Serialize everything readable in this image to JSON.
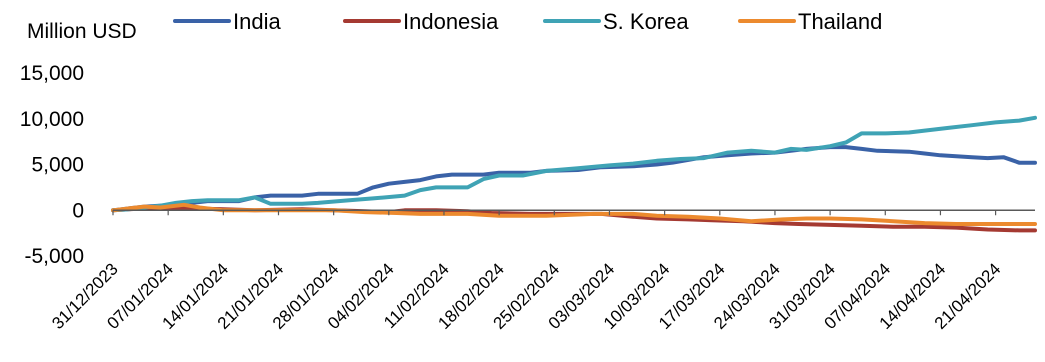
{
  "chart_data": {
    "type": "line",
    "ylabel": "Million USD",
    "ylim": [
      -5000,
      15000
    ],
    "ytick_values": [
      -5000,
      0,
      5000,
      10000,
      15000
    ],
    "ytick_labels": [
      "-5,000",
      "0",
      "5,000",
      "10,000",
      "15,000"
    ],
    "x_start": "2023-12-31",
    "x_end": "2024-04-26",
    "xtick_labels": [
      "31/12/2023",
      "07/01/2024",
      "14/01/2024",
      "21/01/2024",
      "28/01/2024",
      "04/02/2024",
      "11/02/2024",
      "18/02/2024",
      "25/02/2024",
      "03/03/2024",
      "10/03/2024",
      "17/03/2024",
      "24/03/2024",
      "31/03/2024",
      "07/04/2024",
      "14/04/2024",
      "21/04/2024"
    ],
    "xtick_dates": [
      "2023-12-31",
      "2024-01-07",
      "2024-01-14",
      "2024-01-21",
      "2024-01-28",
      "2024-02-04",
      "2024-02-11",
      "2024-02-18",
      "2024-02-25",
      "2024-03-03",
      "2024-03-10",
      "2024-03-17",
      "2024-03-24",
      "2024-03-31",
      "2024-04-07",
      "2024-04-14",
      "2024-04-21"
    ],
    "legend_position": "top",
    "grid": false,
    "series": [
      {
        "name": "India",
        "color": "#3A62A7",
        "points": [
          [
            "2023-12-31",
            0
          ],
          [
            "2024-01-02",
            200
          ],
          [
            "2024-01-04",
            400
          ],
          [
            "2024-01-08",
            600
          ],
          [
            "2024-01-10",
            800
          ],
          [
            "2024-01-12",
            1000
          ],
          [
            "2024-01-16",
            1000
          ],
          [
            "2024-01-18",
            1400
          ],
          [
            "2024-01-20",
            1600
          ],
          [
            "2024-01-24",
            1600
          ],
          [
            "2024-01-26",
            1800
          ],
          [
            "2024-01-31",
            1800
          ],
          [
            "2024-02-02",
            2500
          ],
          [
            "2024-02-04",
            2900
          ],
          [
            "2024-02-06",
            3100
          ],
          [
            "2024-02-08",
            3300
          ],
          [
            "2024-02-10",
            3700
          ],
          [
            "2024-02-12",
            3900
          ],
          [
            "2024-02-16",
            3900
          ],
          [
            "2024-02-18",
            4100
          ],
          [
            "2024-02-22",
            4100
          ],
          [
            "2024-02-24",
            4300
          ],
          [
            "2024-02-28",
            4400
          ],
          [
            "2024-03-02",
            4700
          ],
          [
            "2024-03-06",
            4800
          ],
          [
            "2024-03-09",
            5000
          ],
          [
            "2024-03-11",
            5200
          ],
          [
            "2024-03-13",
            5500
          ],
          [
            "2024-03-15",
            5800
          ],
          [
            "2024-03-18",
            6000
          ],
          [
            "2024-03-21",
            6200
          ],
          [
            "2024-03-24",
            6300
          ],
          [
            "2024-03-26",
            6500
          ],
          [
            "2024-03-28",
            6700
          ],
          [
            "2024-03-31",
            6900
          ],
          [
            "2024-04-02",
            6900
          ],
          [
            "2024-04-04",
            6700
          ],
          [
            "2024-04-06",
            6500
          ],
          [
            "2024-04-10",
            6400
          ],
          [
            "2024-04-12",
            6200
          ],
          [
            "2024-04-14",
            6000
          ],
          [
            "2024-04-16",
            5900
          ],
          [
            "2024-04-18",
            5800
          ],
          [
            "2024-04-20",
            5700
          ],
          [
            "2024-04-22",
            5800
          ],
          [
            "2024-04-24",
            5200
          ],
          [
            "2024-04-26",
            5200
          ]
        ]
      },
      {
        "name": "Indonesia",
        "color": "#A53A32",
        "points": [
          [
            "2023-12-31",
            0
          ],
          [
            "2024-01-02",
            100
          ],
          [
            "2024-01-06",
            300
          ],
          [
            "2024-01-10",
            200
          ],
          [
            "2024-01-14",
            100
          ],
          [
            "2024-01-18",
            0
          ],
          [
            "2024-01-24",
            100
          ],
          [
            "2024-01-28",
            0
          ],
          [
            "2024-02-01",
            -100
          ],
          [
            "2024-02-04",
            -200
          ],
          [
            "2024-02-06",
            0
          ],
          [
            "2024-02-10",
            0
          ],
          [
            "2024-02-14",
            -100
          ],
          [
            "2024-02-17",
            -300
          ],
          [
            "2024-02-22",
            -400
          ],
          [
            "2024-02-26",
            -400
          ],
          [
            "2024-03-02",
            -400
          ],
          [
            "2024-03-06",
            -700
          ],
          [
            "2024-03-09",
            -900
          ],
          [
            "2024-03-13",
            -1000
          ],
          [
            "2024-03-16",
            -1100
          ],
          [
            "2024-03-20",
            -1200
          ],
          [
            "2024-03-24",
            -1400
          ],
          [
            "2024-03-27",
            -1500
          ],
          [
            "2024-03-31",
            -1600
          ],
          [
            "2024-04-04",
            -1700
          ],
          [
            "2024-04-08",
            -1800
          ],
          [
            "2024-04-12",
            -1800
          ],
          [
            "2024-04-16",
            -1900
          ],
          [
            "2024-04-20",
            -2100
          ],
          [
            "2024-04-24",
            -2200
          ],
          [
            "2024-04-26",
            -2200
          ]
        ]
      },
      {
        "name": "S. Korea",
        "color": "#3FA3B5",
        "points": [
          [
            "2023-12-31",
            0
          ],
          [
            "2024-01-02",
            100
          ],
          [
            "2024-01-04",
            300
          ],
          [
            "2024-01-06",
            500
          ],
          [
            "2024-01-08",
            800
          ],
          [
            "2024-01-10",
            1000
          ],
          [
            "2024-01-12",
            1100
          ],
          [
            "2024-01-16",
            1100
          ],
          [
            "2024-01-18",
            1400
          ],
          [
            "2024-01-20",
            700
          ],
          [
            "2024-01-24",
            700
          ],
          [
            "2024-01-26",
            800
          ],
          [
            "2024-01-30",
            1100
          ],
          [
            "2024-02-02",
            1300
          ],
          [
            "2024-02-06",
            1600
          ],
          [
            "2024-02-08",
            2200
          ],
          [
            "2024-02-10",
            2500
          ],
          [
            "2024-02-14",
            2500
          ],
          [
            "2024-02-16",
            3400
          ],
          [
            "2024-02-18",
            3800
          ],
          [
            "2024-02-21",
            3800
          ],
          [
            "2024-02-24",
            4300
          ],
          [
            "2024-02-28",
            4600
          ],
          [
            "2024-03-03",
            4900
          ],
          [
            "2024-03-06",
            5100
          ],
          [
            "2024-03-09",
            5400
          ],
          [
            "2024-03-12",
            5600
          ],
          [
            "2024-03-15",
            5700
          ],
          [
            "2024-03-18",
            6300
          ],
          [
            "2024-03-21",
            6500
          ],
          [
            "2024-03-24",
            6300
          ],
          [
            "2024-03-26",
            6700
          ],
          [
            "2024-03-28",
            6600
          ],
          [
            "2024-03-31",
            7000
          ],
          [
            "2024-04-02",
            7400
          ],
          [
            "2024-04-04",
            8400
          ],
          [
            "2024-04-07",
            8400
          ],
          [
            "2024-04-10",
            8500
          ],
          [
            "2024-04-12",
            8700
          ],
          [
            "2024-04-15",
            9000
          ],
          [
            "2024-04-18",
            9300
          ],
          [
            "2024-04-21",
            9600
          ],
          [
            "2024-04-24",
            9800
          ],
          [
            "2024-04-26",
            10100
          ]
        ]
      },
      {
        "name": "Thailand",
        "color": "#EC8A2E",
        "points": [
          [
            "2023-12-31",
            0
          ],
          [
            "2024-01-02",
            200
          ],
          [
            "2024-01-04",
            400
          ],
          [
            "2024-01-06",
            300
          ],
          [
            "2024-01-09",
            600
          ],
          [
            "2024-01-11",
            300
          ],
          [
            "2024-01-14",
            0
          ],
          [
            "2024-01-20",
            0
          ],
          [
            "2024-01-28",
            0
          ],
          [
            "2024-02-01",
            -200
          ],
          [
            "2024-02-05",
            -300
          ],
          [
            "2024-02-08",
            -400
          ],
          [
            "2024-02-14",
            -400
          ],
          [
            "2024-02-18",
            -600
          ],
          [
            "2024-02-24",
            -600
          ],
          [
            "2024-03-01",
            -400
          ],
          [
            "2024-03-06",
            -400
          ],
          [
            "2024-03-09",
            -600
          ],
          [
            "2024-03-13",
            -700
          ],
          [
            "2024-03-17",
            -900
          ],
          [
            "2024-03-21",
            -1200
          ],
          [
            "2024-03-25",
            -1000
          ],
          [
            "2024-03-28",
            -900
          ],
          [
            "2024-03-31",
            -900
          ],
          [
            "2024-04-04",
            -1000
          ],
          [
            "2024-04-08",
            -1200
          ],
          [
            "2024-04-12",
            -1400
          ],
          [
            "2024-04-16",
            -1500
          ],
          [
            "2024-04-20",
            -1500
          ],
          [
            "2024-04-26",
            -1500
          ]
        ]
      }
    ]
  }
}
